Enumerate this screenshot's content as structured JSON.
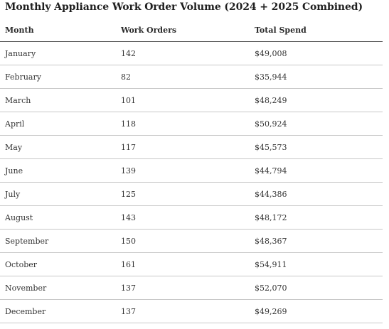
{
  "title": "Monthly Appliance Work Order Volume (2024 + 2025 Combined)",
  "columns": [
    "Month",
    "Work Orders",
    "Total Spend"
  ],
  "rows": [
    {
      "month": "January",
      "work_orders": "142",
      "total_spend": "$49,008"
    },
    {
      "month": "February",
      "work_orders": "82",
      "total_spend": "$35,944"
    },
    {
      "month": "March",
      "work_orders": "101",
      "total_spend": "$48,249"
    },
    {
      "month": "April",
      "work_orders": "118",
      "total_spend": "$50,924"
    },
    {
      "month": "May",
      "work_orders": "117",
      "total_spend": "$45,573"
    },
    {
      "month": "June",
      "work_orders": "139",
      "total_spend": "$44,794"
    },
    {
      "month": "July",
      "work_orders": "125",
      "total_spend": "$44,386"
    },
    {
      "month": "August",
      "work_orders": "143",
      "total_spend": "$48,172"
    },
    {
      "month": "September",
      "work_orders": "150",
      "total_spend": "$48,367"
    },
    {
      "month": "October",
      "work_orders": "161",
      "total_spend": "$54,911"
    },
    {
      "month": "November",
      "work_orders": "137",
      "total_spend": "$52,070"
    },
    {
      "month": "December",
      "work_orders": "137",
      "total_spend": "$49,269"
    }
  ]
}
